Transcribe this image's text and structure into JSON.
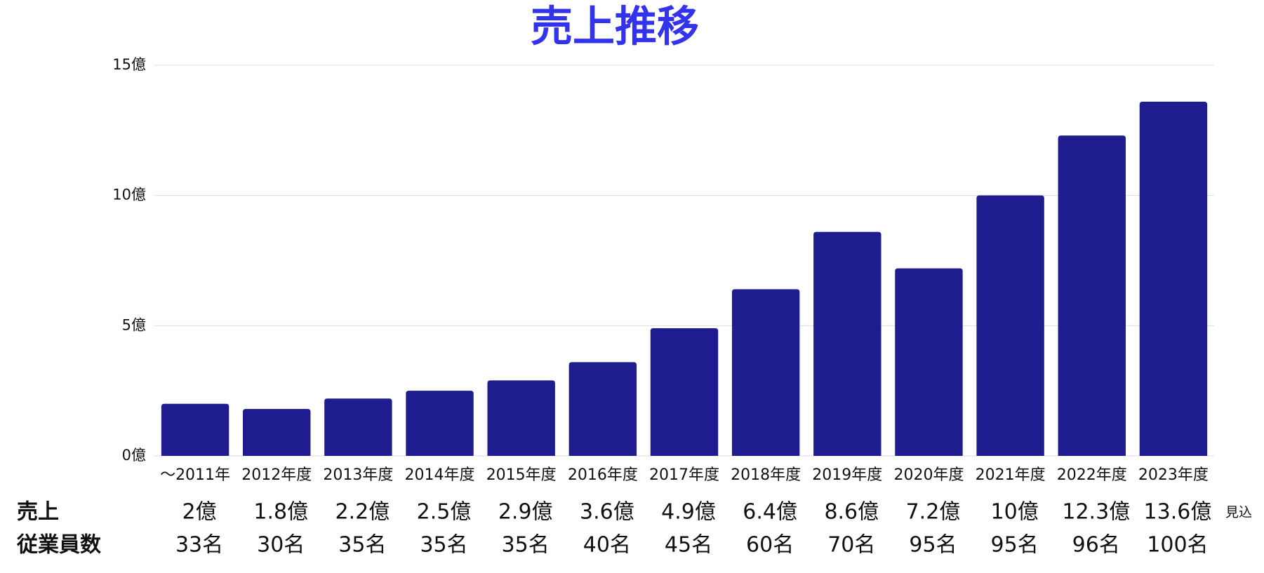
{
  "chart_data": {
    "type": "bar",
    "title": "売上推移",
    "categories": [
      "〜2011年",
      "2012年度",
      "2013年度",
      "2014年度",
      "2015年度",
      "2016年度",
      "2017年度",
      "2018年度",
      "2019年度",
      "2020年度",
      "2021年度",
      "2022年度",
      "2023年度"
    ],
    "values": [
      2,
      1.8,
      2.2,
      2.5,
      2.9,
      3.6,
      4.9,
      6.4,
      8.6,
      7.2,
      10,
      12.3,
      13.6
    ],
    "value_labels": [
      "2億",
      "1.8億",
      "2.2億",
      "2.5億",
      "2.9億",
      "3.6億",
      "4.9億",
      "6.4億",
      "8.6億",
      "7.2億",
      "10億",
      "12.3億",
      "13.6億"
    ],
    "color": "#1f1c8f",
    "ylim": [
      0,
      15
    ],
    "yticks": [
      {
        "value": 0,
        "label": "0億"
      },
      {
        "value": 5,
        "label": "5億"
      },
      {
        "value": 10,
        "label": "10億"
      },
      {
        "value": 15,
        "label": "15億"
      }
    ],
    "grid": true,
    "sales_row_label": "売上",
    "employees_row_label": "従業員数",
    "employees": [
      "33名",
      "30名",
      "35名",
      "35名",
      "35名",
      "40名",
      "45名",
      "60名",
      "70名",
      "95名",
      "95名",
      "96名",
      "100名"
    ],
    "annotation": "見込"
  }
}
